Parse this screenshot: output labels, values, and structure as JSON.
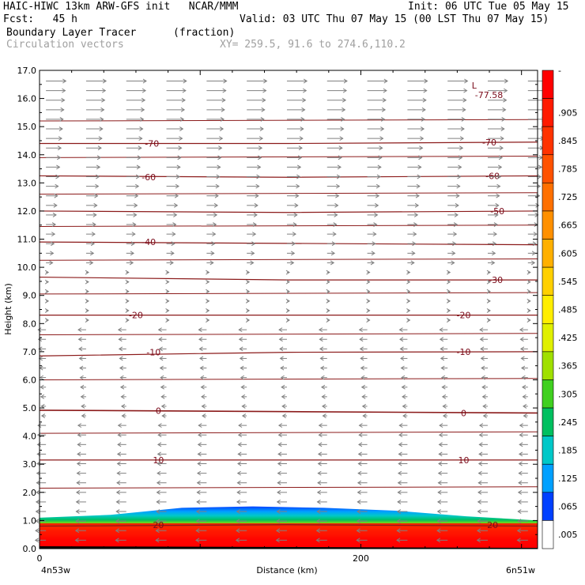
{
  "header": {
    "model": "HAIC-HIWC 13km ARW-GFS init   NCAR/MMM",
    "init": "Init: 06 UTC Tue 05 May 15",
    "fcst": "Fcst:   45 h",
    "valid": "Valid: 03 UTC Thu 07 May 15 (00 LST Thu 07 May 15)",
    "field": "Boundary Layer Tracer",
    "units": "(fraction)",
    "vectors": "Circulation vectors",
    "xy": "XY= 259.5, 91.6 to 274.6,110.2"
  },
  "colors": {
    "contour": "#8b1a1a",
    "vector": "#808080",
    "terrain": "#000000"
  },
  "chart_data": {
    "type": "heatmap",
    "xlabel": "Distance (km)",
    "ylabel": "Height (km)",
    "xlim": [
      0,
      310
    ],
    "ylim": [
      0,
      17
    ],
    "x_ticks": [
      {
        "v": 0,
        "label": "0"
      },
      {
        "v": 200,
        "label": "200"
      }
    ],
    "x_end_labels": {
      "left": "4n53w",
      "right": "6n51w"
    },
    "y_ticks": [
      "0.0",
      "1.0",
      "2.0",
      "3.0",
      "4.0",
      "5.0",
      "6.0",
      "7.0",
      "8.0",
      "9.0",
      "10.0",
      "11.0",
      "12.0",
      "13.0",
      "14.0",
      "15.0",
      "16.0",
      "17.0"
    ],
    "colorbar": {
      "labels": [
        "-",
        ".905",
        ".845",
        ".785",
        ".725",
        ".665",
        ".605",
        ".545",
        ".485",
        ".425",
        ".365",
        ".305",
        ".245",
        ".185",
        ".125",
        ".065",
        ".005"
      ],
      "colors": [
        "#ff0000",
        "#ff1a00",
        "#ff3300",
        "#ff5200",
        "#ff7000",
        "#ff9000",
        "#ffb000",
        "#ffd000",
        "#ffee00",
        "#e0f000",
        "#a0e000",
        "#40d020",
        "#00c060",
        "#00c8c8",
        "#00a0ff",
        "#0040ff",
        "#ffffff"
      ]
    },
    "temperature_contours": [
      {
        "value": 20,
        "y": [
          0.8,
          0.85,
          0.8
        ]
      },
      {
        "value": 10,
        "y": [
          3.15,
          3.15,
          3.15
        ]
      },
      {
        "value": 0,
        "y": [
          4.92,
          4.87,
          4.82
        ]
      },
      {
        "value": -10,
        "y": [
          6.85,
          6.98,
          7.0
        ]
      },
      {
        "value": -20,
        "y": [
          8.3,
          8.3,
          8.3
        ]
      },
      {
        "value": -30,
        "y": [
          9.65,
          9.55,
          9.55
        ]
      },
      {
        "value": -40,
        "y": [
          10.9,
          10.85,
          10.8
        ]
      },
      {
        "value": -50,
        "y": [
          12.0,
          11.95,
          12.0
        ]
      },
      {
        "value": -60,
        "y": [
          13.25,
          13.2,
          13.25
        ]
      },
      {
        "value": -70,
        "y": [
          14.4,
          14.4,
          14.45
        ]
      }
    ],
    "contour_labels": [
      {
        "text": "-70",
        "x": 70,
        "y": 14.4
      },
      {
        "text": "-70",
        "x": 280,
        "y": 14.45
      },
      {
        "text": "-60",
        "x": 68,
        "y": 13.2
      },
      {
        "text": "-60",
        "x": 282,
        "y": 13.25
      },
      {
        "text": "-50",
        "x": 285,
        "y": 12.0
      },
      {
        "text": "-40",
        "x": 68,
        "y": 10.9
      },
      {
        "text": "-30",
        "x": 284,
        "y": 9.55
      },
      {
        "text": "-20",
        "x": 60,
        "y": 8.3
      },
      {
        "text": "-20",
        "x": 264,
        "y": 8.3
      },
      {
        "text": "-10",
        "x": 71,
        "y": 6.98
      },
      {
        "text": "-10",
        "x": 264,
        "y": 7.0
      },
      {
        "text": "0",
        "x": 74,
        "y": 4.9
      },
      {
        "text": "0",
        "x": 264,
        "y": 4.82
      },
      {
        "text": "10",
        "x": 74,
        "y": 3.15
      },
      {
        "text": "10",
        "x": 264,
        "y": 3.15
      },
      {
        "text": "20",
        "x": 74,
        "y": 0.85
      },
      {
        "text": "20",
        "x": 282,
        "y": 0.85
      }
    ],
    "extra_lines": [
      15.2,
      13.9,
      12.6,
      11.45,
      10.25,
      9.05,
      7.6,
      6.0,
      4.1,
      2.15
    ],
    "min_label": {
      "text": "L\n-77.58",
      "x": 272,
      "y": 16.3
    },
    "tracer_top_km": [
      1.1,
      1.2,
      1.45,
      1.5,
      1.45,
      1.35,
      1.15,
      1.0
    ],
    "vectors": {
      "upper_u": 1.0,
      "lower_u": -0.8
    }
  }
}
